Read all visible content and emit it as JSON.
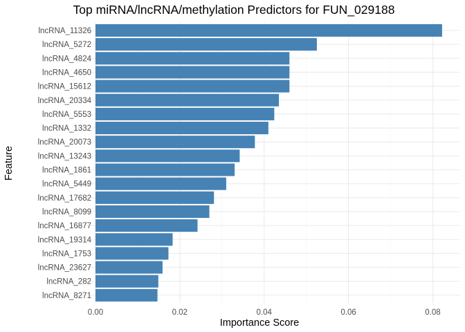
{
  "chart_data": {
    "type": "bar",
    "orientation": "horizontal",
    "title": "Top miRNA/lncRNA/methylation Predictors for FUN_029188",
    "xlabel": "Importance Score",
    "ylabel": "Feature",
    "xlim": [
      -0.0025,
      0.0865
    ],
    "xticks": [
      0.0,
      0.02,
      0.04,
      0.06,
      0.08
    ],
    "xtick_labels": [
      "0.00",
      "0.02",
      "0.04",
      "0.06",
      "0.08"
    ],
    "bar_color": "#4682B4",
    "grid": true,
    "categories": [
      "lncRNA_11326",
      "lncRNA_5272",
      "lncRNA_4824",
      "lncRNA_4650",
      "lncRNA_15612",
      "lncRNA_20334",
      "lncRNA_5553",
      "lncRNA_1332",
      "lncRNA_20073",
      "lncRNA_13243",
      "lncRNA_1861",
      "lncRNA_5449",
      "lncRNA_17682",
      "lncRNA_8099",
      "lncRNA_16877",
      "lncRNA_19314",
      "lncRNA_1753",
      "lncRNA_23627",
      "lncRNA_282",
      "lncRNA_8271"
    ],
    "values": [
      0.0822,
      0.0525,
      0.046,
      0.046,
      0.046,
      0.0435,
      0.0424,
      0.041,
      0.0378,
      0.0342,
      0.033,
      0.031,
      0.0281,
      0.027,
      0.0242,
      0.0183,
      0.0173,
      0.0159,
      0.0149,
      0.0147
    ]
  }
}
